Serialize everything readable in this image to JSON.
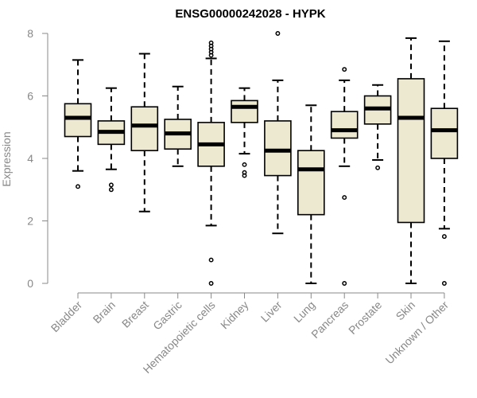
{
  "chart_data": {
    "type": "box",
    "title": "ENSG00000242028 - HYPK",
    "xlabel": "",
    "ylabel": "Expression",
    "ylim": [
      0,
      8
    ],
    "yticks": [
      0,
      2,
      4,
      6,
      8
    ],
    "grid": false,
    "box_fill": "#ede8d0",
    "box_stroke": "#000000",
    "categories": [
      "Bladder",
      "Brain",
      "Breast",
      "Gastric",
      "Hematopoietic cells",
      "Kidney",
      "Liver",
      "Lung",
      "Pancreas",
      "Prostate",
      "Skin",
      "Unknown / Other"
    ],
    "boxes": [
      {
        "whisker_low": 3.6,
        "q1": 4.7,
        "median": 5.3,
        "q3": 5.75,
        "whisker_high": 7.15,
        "outliers": [
          3.1
        ]
      },
      {
        "whisker_low": 3.65,
        "q1": 4.45,
        "median": 4.85,
        "q3": 5.2,
        "whisker_high": 6.25,
        "outliers": [
          3.15,
          3.0
        ]
      },
      {
        "whisker_low": 2.3,
        "q1": 4.25,
        "median": 5.05,
        "q3": 5.65,
        "whisker_high": 7.35,
        "outliers": []
      },
      {
        "whisker_low": 3.75,
        "q1": 4.3,
        "median": 4.8,
        "q3": 5.25,
        "whisker_high": 6.3,
        "outliers": []
      },
      {
        "whisker_low": 1.85,
        "q1": 3.75,
        "median": 4.45,
        "q3": 5.15,
        "whisker_high": 7.2,
        "outliers": [
          7.7,
          7.6,
          7.5,
          7.4,
          7.3,
          0.75,
          0.0
        ]
      },
      {
        "whisker_low": 4.15,
        "q1": 5.15,
        "median": 5.65,
        "q3": 5.85,
        "whisker_high": 6.25,
        "outliers": [
          3.8,
          3.55,
          3.45
        ]
      },
      {
        "whisker_low": 1.6,
        "q1": 3.45,
        "median": 4.25,
        "q3": 5.2,
        "whisker_high": 6.5,
        "outliers": [
          8.0
        ]
      },
      {
        "whisker_low": 0.0,
        "q1": 2.2,
        "median": 3.65,
        "q3": 4.25,
        "whisker_high": 5.7,
        "outliers": []
      },
      {
        "whisker_low": 3.75,
        "q1": 4.65,
        "median": 4.9,
        "q3": 5.5,
        "whisker_high": 6.5,
        "outliers": [
          6.85,
          2.75,
          0.0
        ]
      },
      {
        "whisker_low": 3.95,
        "q1": 5.1,
        "median": 5.6,
        "q3": 6.0,
        "whisker_high": 6.35,
        "outliers": [
          3.7
        ]
      },
      {
        "whisker_low": 0.0,
        "q1": 1.95,
        "median": 5.3,
        "q3": 6.55,
        "whisker_high": 7.85,
        "outliers": []
      },
      {
        "whisker_low": 1.75,
        "q1": 4.0,
        "median": 4.9,
        "q3": 5.6,
        "whisker_high": 7.75,
        "outliers": [
          1.5,
          0.0
        ]
      }
    ]
  }
}
